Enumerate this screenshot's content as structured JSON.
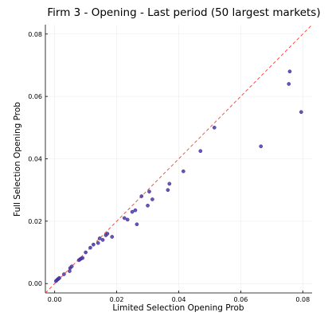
{
  "chart_data": {
    "type": "scatter",
    "title": "Firm 3 - Opening - Last period (50 largest markets)",
    "xlabel": "Limited Selection Opening Prob",
    "ylabel": "Full Selection Opening Prob",
    "xlim": [
      -0.003,
      0.083
    ],
    "ylim": [
      -0.003,
      0.083
    ],
    "xticks": [
      0.0,
      0.02,
      0.04,
      0.06,
      0.08
    ],
    "yticks": [
      0.0,
      0.02,
      0.04,
      0.06,
      0.08
    ],
    "xtick_labels": [
      "0.00",
      "0.02",
      "0.04",
      "0.06",
      "0.08"
    ],
    "ytick_labels": [
      "0.00",
      "0.02",
      "0.04",
      "0.06",
      "0.08"
    ],
    "grid": true,
    "legend": false,
    "reference_line": {
      "style": "dashed",
      "color": "#ff3b2f",
      "slope": 1,
      "intercept": 0
    },
    "point_color": "#4a3aa8",
    "points": [
      {
        "x": 0.0004,
        "y": 0.0008
      },
      {
        "x": 0.0007,
        "y": 0.0011
      },
      {
        "x": 0.001,
        "y": 0.0014
      },
      {
        "x": 0.0013,
        "y": 0.0016
      },
      {
        "x": 0.0015,
        "y": 0.0018
      },
      {
        "x": 0.003,
        "y": 0.003
      },
      {
        "x": 0.0048,
        "y": 0.004
      },
      {
        "x": 0.005,
        "y": 0.005
      },
      {
        "x": 0.0055,
        "y": 0.0055
      },
      {
        "x": 0.0078,
        "y": 0.0075
      },
      {
        "x": 0.0082,
        "y": 0.0078
      },
      {
        "x": 0.0085,
        "y": 0.008
      },
      {
        "x": 0.009,
        "y": 0.0082
      },
      {
        "x": 0.01,
        "y": 0.01
      },
      {
        "x": 0.0115,
        "y": 0.0115
      },
      {
        "x": 0.0125,
        "y": 0.0125
      },
      {
        "x": 0.014,
        "y": 0.013
      },
      {
        "x": 0.0145,
        "y": 0.0145
      },
      {
        "x": 0.0155,
        "y": 0.014
      },
      {
        "x": 0.0165,
        "y": 0.0155
      },
      {
        "x": 0.017,
        "y": 0.016
      },
      {
        "x": 0.0185,
        "y": 0.015
      },
      {
        "x": 0.0225,
        "y": 0.021
      },
      {
        "x": 0.0235,
        "y": 0.0205
      },
      {
        "x": 0.025,
        "y": 0.023
      },
      {
        "x": 0.026,
        "y": 0.0235
      },
      {
        "x": 0.0265,
        "y": 0.019
      },
      {
        "x": 0.028,
        "y": 0.028
      },
      {
        "x": 0.03,
        "y": 0.025
      },
      {
        "x": 0.0305,
        "y": 0.0295
      },
      {
        "x": 0.0315,
        "y": 0.027
      },
      {
        "x": 0.0365,
        "y": 0.03
      },
      {
        "x": 0.037,
        "y": 0.032
      },
      {
        "x": 0.0415,
        "y": 0.036
      },
      {
        "x": 0.047,
        "y": 0.0425
      },
      {
        "x": 0.0515,
        "y": 0.05
      },
      {
        "x": 0.0665,
        "y": 0.044
      },
      {
        "x": 0.0755,
        "y": 0.064
      },
      {
        "x": 0.0758,
        "y": 0.068
      },
      {
        "x": 0.0795,
        "y": 0.055
      }
    ]
  }
}
